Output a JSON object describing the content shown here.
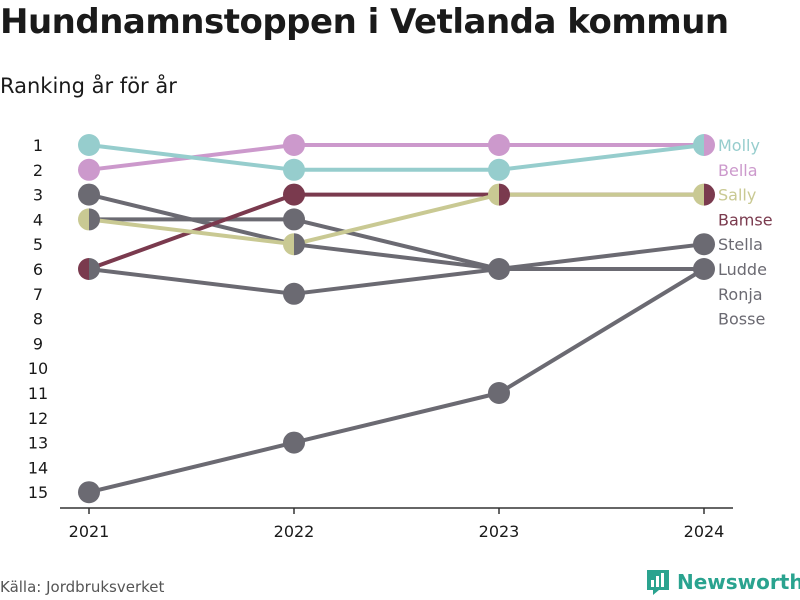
{
  "title": "Hundnamnstoppen i Vetlanda kommun",
  "subtitle": "Ranking år för år",
  "source": "Källa: Jordbruksverket",
  "brand": "Newsworthy",
  "chart_data": {
    "type": "line",
    "x": [
      "2021",
      "2022",
      "2023",
      "2024"
    ],
    "ylim": [
      1,
      15
    ],
    "y_reversed": true,
    "y_ticks": [
      1,
      2,
      3,
      4,
      5,
      6,
      7,
      8,
      9,
      10,
      11,
      12,
      13,
      14,
      15
    ],
    "grid": false,
    "series": [
      {
        "name": "Bosse",
        "color": "#6b6a72",
        "values": [
          15,
          13,
          11,
          6
        ]
      },
      {
        "name": "Ronja",
        "color": "#6b6a72",
        "values": [
          6,
          7,
          6,
          6
        ]
      },
      {
        "name": "Ludde",
        "color": "#6b6a72",
        "values": [
          4,
          4,
          6,
          6
        ]
      },
      {
        "name": "Stella",
        "color": "#6b6a72",
        "values": [
          3,
          5,
          6,
          5
        ]
      },
      {
        "name": "Bamse",
        "color": "#7a3a4e",
        "values": [
          6,
          3,
          3,
          3
        ]
      },
      {
        "name": "Sally",
        "color": "#c9c993",
        "values": [
          4,
          5,
          3,
          3
        ]
      },
      {
        "name": "Bella",
        "color": "#cc99cc",
        "values": [
          2,
          1,
          1,
          1
        ]
      },
      {
        "name": "Molly",
        "color": "#96cdcd",
        "values": [
          1,
          2,
          2,
          1
        ]
      }
    ],
    "label_order": [
      "Molly",
      "Bella",
      "Sally",
      "Bamse",
      "Stella",
      "Ludde",
      "Ronja",
      "Bosse"
    ]
  }
}
